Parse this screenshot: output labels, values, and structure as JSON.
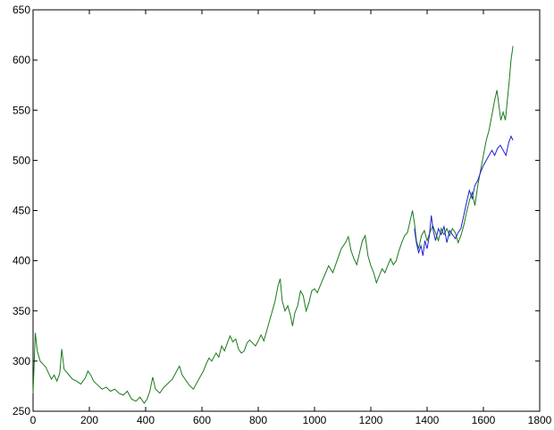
{
  "chart_data": {
    "type": "line",
    "title": "",
    "xlabel": "",
    "ylabel": "",
    "xlim": [
      0,
      1800
    ],
    "ylim": [
      250,
      650
    ],
    "x_ticks": [
      "0",
      "200",
      "400",
      "600",
      "800",
      "1000",
      "1200",
      "1400",
      "1600",
      "1800"
    ],
    "y_ticks": [
      "250",
      "300",
      "350",
      "400",
      "450",
      "500",
      "550",
      "600",
      "650"
    ],
    "grid": false,
    "legend": "none",
    "series": [
      {
        "color": "#1a7a1a",
        "points": [
          [
            0,
            268
          ],
          [
            8,
            328
          ],
          [
            15,
            310
          ],
          [
            25,
            300
          ],
          [
            35,
            297
          ],
          [
            45,
            294
          ],
          [
            55,
            288
          ],
          [
            65,
            282
          ],
          [
            75,
            286
          ],
          [
            85,
            280
          ],
          [
            95,
            288
          ],
          [
            102,
            312
          ],
          [
            110,
            292
          ],
          [
            125,
            287
          ],
          [
            140,
            282
          ],
          [
            155,
            280
          ],
          [
            170,
            277
          ],
          [
            185,
            283
          ],
          [
            195,
            290
          ],
          [
            205,
            286
          ],
          [
            215,
            280
          ],
          [
            230,
            276
          ],
          [
            245,
            272
          ],
          [
            260,
            274
          ],
          [
            275,
            270
          ],
          [
            290,
            272
          ],
          [
            305,
            268
          ],
          [
            320,
            266
          ],
          [
            335,
            270
          ],
          [
            350,
            262
          ],
          [
            365,
            260
          ],
          [
            380,
            264
          ],
          [
            395,
            258
          ],
          [
            405,
            262
          ],
          [
            415,
            270
          ],
          [
            425,
            284
          ],
          [
            435,
            272
          ],
          [
            450,
            268
          ],
          [
            465,
            274
          ],
          [
            480,
            278
          ],
          [
            495,
            282
          ],
          [
            510,
            290
          ],
          [
            520,
            295
          ],
          [
            530,
            286
          ],
          [
            540,
            282
          ],
          [
            555,
            276
          ],
          [
            570,
            272
          ],
          [
            585,
            280
          ],
          [
            595,
            285
          ],
          [
            605,
            290
          ],
          [
            615,
            297
          ],
          [
            625,
            303
          ],
          [
            635,
            300
          ],
          [
            650,
            308
          ],
          [
            660,
            304
          ],
          [
            670,
            315
          ],
          [
            680,
            310
          ],
          [
            690,
            318
          ],
          [
            700,
            325
          ],
          [
            710,
            319
          ],
          [
            720,
            322
          ],
          [
            730,
            312
          ],
          [
            740,
            308
          ],
          [
            750,
            310
          ],
          [
            760,
            318
          ],
          [
            770,
            321
          ],
          [
            780,
            318
          ],
          [
            790,
            315
          ],
          [
            800,
            320
          ],
          [
            810,
            326
          ],
          [
            820,
            320
          ],
          [
            830,
            330
          ],
          [
            840,
            340
          ],
          [
            850,
            350
          ],
          [
            860,
            360
          ],
          [
            870,
            375
          ],
          [
            878,
            382
          ],
          [
            885,
            360
          ],
          [
            895,
            350
          ],
          [
            905,
            355
          ],
          [
            915,
            345
          ],
          [
            922,
            335
          ],
          [
            930,
            348
          ],
          [
            940,
            355
          ],
          [
            950,
            370
          ],
          [
            960,
            365
          ],
          [
            970,
            350
          ],
          [
            980,
            358
          ],
          [
            990,
            370
          ],
          [
            1000,
            372
          ],
          [
            1010,
            368
          ],
          [
            1020,
            375
          ],
          [
            1035,
            385
          ],
          [
            1050,
            395
          ],
          [
            1065,
            388
          ],
          [
            1080,
            400
          ],
          [
            1095,
            412
          ],
          [
            1110,
            418
          ],
          [
            1120,
            424
          ],
          [
            1130,
            410
          ],
          [
            1140,
            402
          ],
          [
            1150,
            396
          ],
          [
            1160,
            408
          ],
          [
            1170,
            420
          ],
          [
            1180,
            425
          ],
          [
            1190,
            405
          ],
          [
            1200,
            395
          ],
          [
            1210,
            388
          ],
          [
            1220,
            378
          ],
          [
            1230,
            385
          ],
          [
            1240,
            392
          ],
          [
            1250,
            388
          ],
          [
            1260,
            395
          ],
          [
            1270,
            402
          ],
          [
            1280,
            396
          ],
          [
            1290,
            400
          ],
          [
            1300,
            410
          ],
          [
            1310,
            418
          ],
          [
            1320,
            425
          ],
          [
            1330,
            428
          ],
          [
            1340,
            440
          ],
          [
            1348,
            450
          ],
          [
            1355,
            438
          ],
          [
            1362,
            420
          ],
          [
            1370,
            412
          ],
          [
            1380,
            425
          ],
          [
            1390,
            430
          ],
          [
            1400,
            420
          ],
          [
            1410,
            428
          ],
          [
            1420,
            435
          ],
          [
            1430,
            428
          ],
          [
            1440,
            420
          ],
          [
            1450,
            432
          ],
          [
            1460,
            426
          ],
          [
            1470,
            432
          ],
          [
            1480,
            425
          ],
          [
            1490,
            432
          ],
          [
            1500,
            428
          ],
          [
            1510,
            418
          ],
          [
            1520,
            425
          ],
          [
            1530,
            435
          ],
          [
            1540,
            448
          ],
          [
            1550,
            460
          ],
          [
            1560,
            468
          ],
          [
            1570,
            455
          ],
          [
            1580,
            475
          ],
          [
            1590,
            490
          ],
          [
            1600,
            505
          ],
          [
            1610,
            520
          ],
          [
            1620,
            530
          ],
          [
            1630,
            545
          ],
          [
            1640,
            560
          ],
          [
            1648,
            570
          ],
          [
            1655,
            555
          ],
          [
            1662,
            540
          ],
          [
            1670,
            548
          ],
          [
            1678,
            540
          ],
          [
            1685,
            560
          ],
          [
            1692,
            580
          ],
          [
            1698,
            600
          ],
          [
            1705,
            614
          ]
        ]
      },
      {
        "color": "#1f1fd6",
        "points": [
          [
            1355,
            432
          ],
          [
            1362,
            418
          ],
          [
            1370,
            408
          ],
          [
            1378,
            415
          ],
          [
            1385,
            405
          ],
          [
            1392,
            420
          ],
          [
            1400,
            412
          ],
          [
            1408,
            425
          ],
          [
            1415,
            445
          ],
          [
            1422,
            430
          ],
          [
            1430,
            420
          ],
          [
            1440,
            432
          ],
          [
            1450,
            426
          ],
          [
            1460,
            434
          ],
          [
            1470,
            418
          ],
          [
            1480,
            430
          ],
          [
            1490,
            426
          ],
          [
            1500,
            422
          ],
          [
            1510,
            428
          ],
          [
            1520,
            432
          ],
          [
            1530,
            445
          ],
          [
            1540,
            458
          ],
          [
            1550,
            470
          ],
          [
            1560,
            462
          ],
          [
            1570,
            475
          ],
          [
            1580,
            480
          ],
          [
            1590,
            488
          ],
          [
            1600,
            495
          ],
          [
            1610,
            500
          ],
          [
            1620,
            505
          ],
          [
            1630,
            510
          ],
          [
            1640,
            505
          ],
          [
            1650,
            512
          ],
          [
            1660,
            515
          ],
          [
            1670,
            510
          ],
          [
            1680,
            505
          ],
          [
            1690,
            518
          ],
          [
            1698,
            524
          ],
          [
            1705,
            520
          ]
        ]
      }
    ]
  }
}
